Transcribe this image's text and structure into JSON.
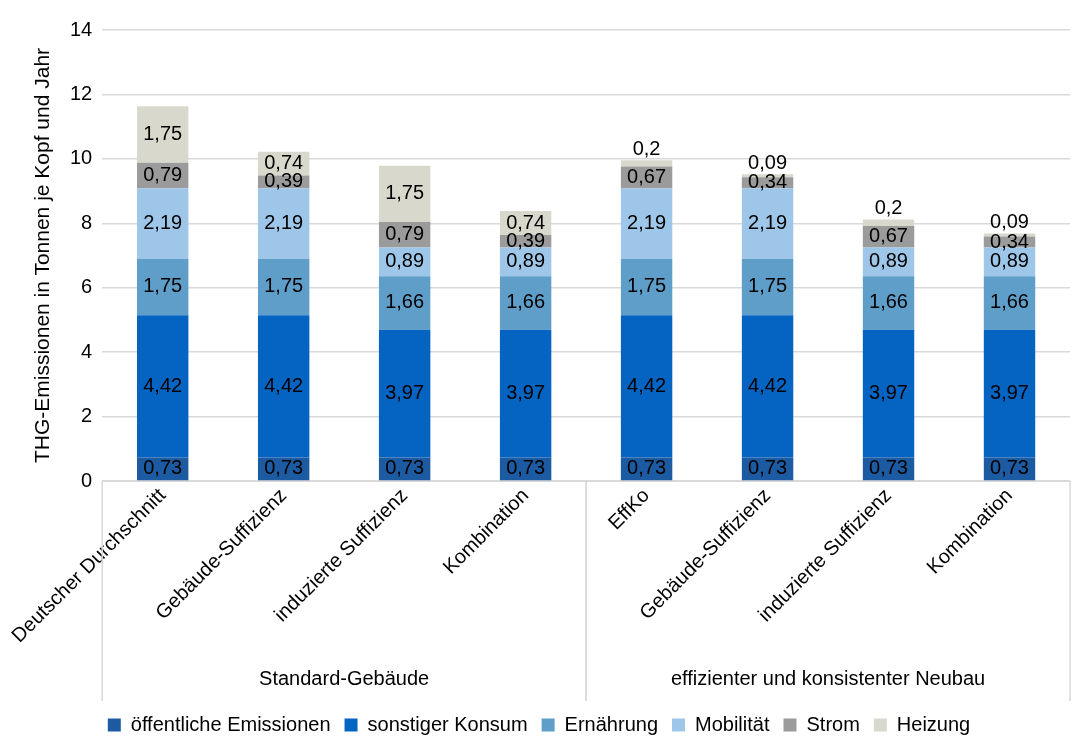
{
  "chart_data": {
    "type": "bar",
    "stacked": true,
    "ylabel": "THG-Emissionen in Tonnen je Kopf und Jahr",
    "categories": [
      "Deutscher Durchschnitt",
      "Gebäude-Suffizienz",
      "induzierte Suffizienz",
      "Kombination",
      "EffKo",
      "Gebäude-Suffizienz",
      "induzierte Suffizienz",
      "Kombination"
    ],
    "series": [
      {
        "name": "öffentliche Emissionen",
        "color": "#1c5aa2",
        "values": [
          0.73,
          0.73,
          0.73,
          0.73,
          0.73,
          0.73,
          0.73,
          0.73
        ],
        "value_labels": [
          "0,73",
          "0,73",
          "0,73",
          "0,73",
          "0,73",
          "0,73",
          "0,73",
          "0,73"
        ]
      },
      {
        "name": "sonstiger Konsum",
        "color": "#0563c1",
        "values": [
          4.42,
          4.42,
          3.97,
          3.97,
          4.42,
          4.42,
          3.97,
          3.97
        ],
        "value_labels": [
          "4,42",
          "4,42",
          "3,97",
          "3,97",
          "4,42",
          "4,42",
          "3,97",
          "3,97"
        ]
      },
      {
        "name": "Ernährung",
        "color": "#5f9ec9",
        "values": [
          1.75,
          1.75,
          1.66,
          1.66,
          1.75,
          1.75,
          1.66,
          1.66
        ],
        "value_labels": [
          "1,75",
          "1,75",
          "1,66",
          "1,66",
          "1,75",
          "1,75",
          "1,66",
          "1,66"
        ]
      },
      {
        "name": "Mobilität",
        "color": "#9dc6e9",
        "values": [
          2.19,
          2.19,
          0.89,
          0.89,
          2.19,
          2.19,
          0.89,
          0.89
        ],
        "value_labels": [
          "2,19",
          "2,19",
          "0,89",
          "0,89",
          "2,19",
          "2,19",
          "0,89",
          "0,89"
        ]
      },
      {
        "name": "Strom",
        "color": "#9b9b9b",
        "values": [
          0.79,
          0.39,
          0.79,
          0.39,
          0.67,
          0.34,
          0.67,
          0.34
        ],
        "value_labels": [
          "0,79",
          "0,39",
          "0,79",
          "0,39",
          "0,67",
          "0,34",
          "0,67",
          "0,34"
        ]
      },
      {
        "name": "Heizung",
        "color": "#d9d8cc",
        "values": [
          1.75,
          0.74,
          1.75,
          0.74,
          0.2,
          0.09,
          0.2,
          0.09
        ],
        "value_labels": [
          "1,75",
          "0,74",
          "1,75",
          "0,74",
          "0,2",
          "0,09",
          "0,2",
          "0,09"
        ]
      }
    ],
    "ylim": [
      0,
      14
    ],
    "yticks": [
      0,
      2,
      4,
      6,
      8,
      10,
      12,
      14
    ],
    "grid": "y",
    "legend": "bottom",
    "annotations": [
      "Standard-Gebäude",
      "effizienter und konsistenter Neubau"
    ]
  }
}
